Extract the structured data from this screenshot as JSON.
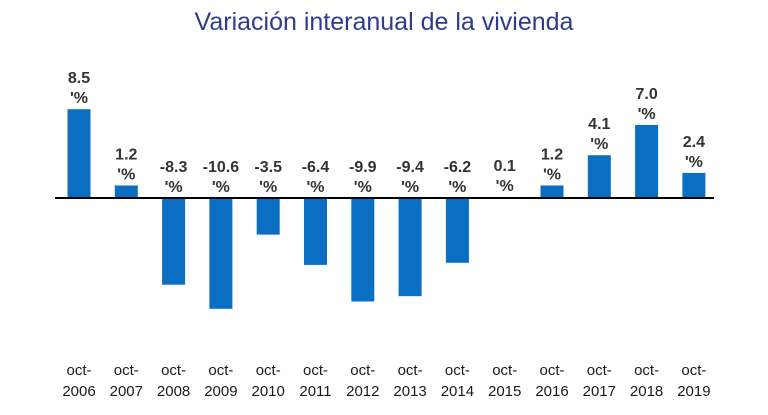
{
  "chart_data": {
    "type": "bar",
    "title": "Variación interanual de la vivienda",
    "categories": [
      [
        "oct-",
        "2006"
      ],
      [
        "oct-",
        "2007"
      ],
      [
        "oct-",
        "2008"
      ],
      [
        "oct-",
        "2009"
      ],
      [
        "oct-",
        "2010"
      ],
      [
        "oct-",
        "2011"
      ],
      [
        "oct-",
        "2012"
      ],
      [
        "oct-",
        "2013"
      ],
      [
        "oct-",
        "2014"
      ],
      [
        "oct-",
        "2015"
      ],
      [
        "oct-",
        "2016"
      ],
      [
        "oct-",
        "2017"
      ],
      [
        "oct-",
        "2018"
      ],
      [
        "oct-",
        "2019"
      ]
    ],
    "values": [
      8.5,
      1.2,
      -8.3,
      -10.6,
      -3.5,
      -6.4,
      -9.9,
      -9.4,
      -6.2,
      0.1,
      1.2,
      4.1,
      7.0,
      2.4
    ],
    "data_labels": [
      [
        "8.5",
        "'%"
      ],
      [
        "1.2",
        "'%"
      ],
      [
        "-8.3",
        "'%"
      ],
      [
        "-10.6",
        "'%"
      ],
      [
        "-3.5",
        "'%"
      ],
      [
        "-6.4",
        "'%"
      ],
      [
        "-9.9",
        "'%"
      ],
      [
        "-9.4",
        "'%"
      ],
      [
        "-6.2",
        "'%"
      ],
      [
        "0.1",
        "'%"
      ],
      [
        "1.2",
        "'%"
      ],
      [
        "4.1",
        "'%"
      ],
      [
        "7.0",
        "'%"
      ],
      [
        "2.4",
        "'%"
      ]
    ],
    "bar_color": "#0a6fc2",
    "axis_color": "#000000",
    "grid": false,
    "legend": "none"
  }
}
